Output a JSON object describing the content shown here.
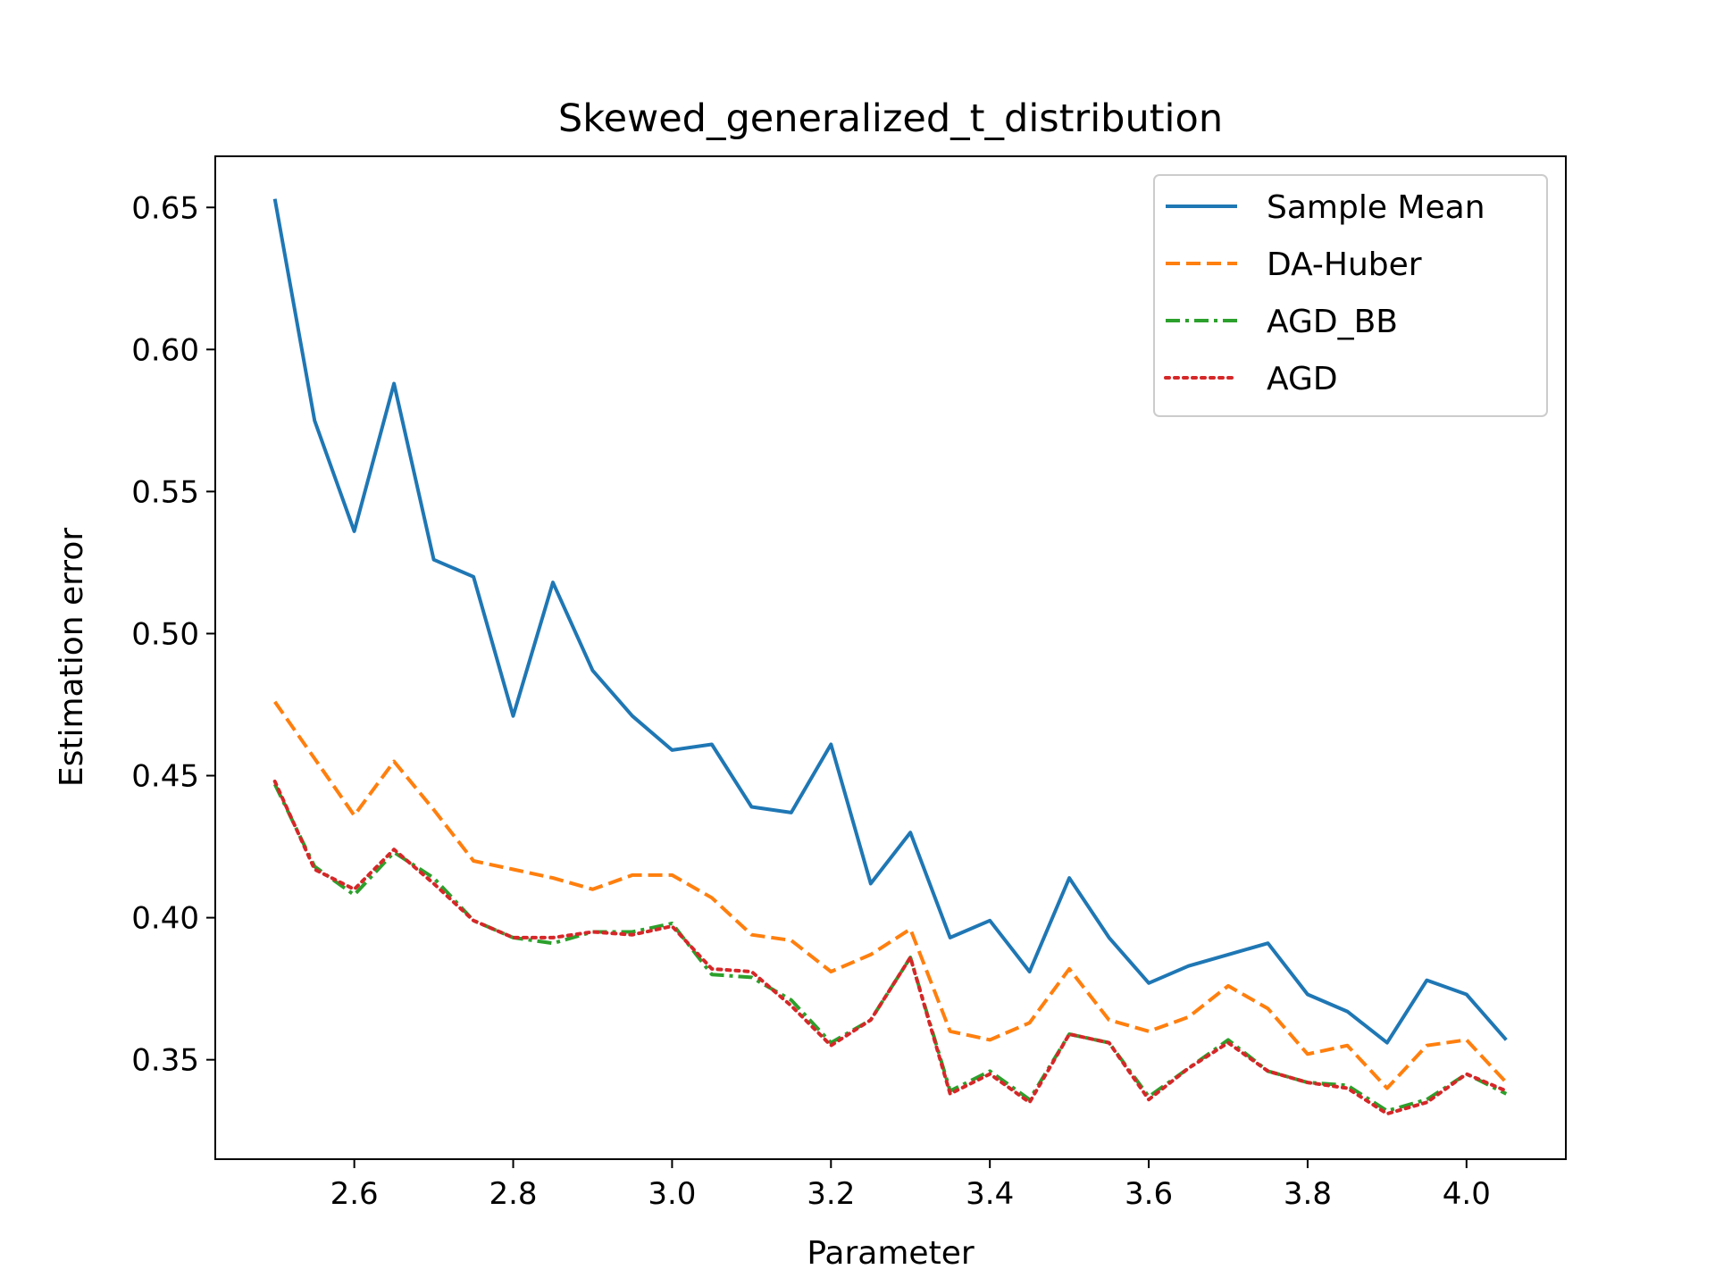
{
  "chart_data": {
    "type": "line",
    "title": "Skewed_generalized_t_distribution",
    "xlabel": "Parameter",
    "ylabel": "Estimation error",
    "xlim": [
      2.425,
      4.125
    ],
    "ylim": [
      0.315,
      0.668
    ],
    "xticks": [
      2.6,
      2.8,
      3.0,
      3.2,
      3.4,
      3.6,
      3.8,
      4.0
    ],
    "xtick_labels": [
      "2.6",
      "2.8",
      "3.0",
      "3.2",
      "3.4",
      "3.6",
      "3.8",
      "4.0"
    ],
    "yticks": [
      0.35,
      0.4,
      0.45,
      0.5,
      0.55,
      0.6,
      0.65
    ],
    "ytick_labels": [
      "0.35",
      "0.40",
      "0.45",
      "0.50",
      "0.55",
      "0.60",
      "0.65"
    ],
    "grid": false,
    "legend_position": "top-right",
    "x": [
      2.5,
      2.55,
      2.6,
      2.65,
      2.7,
      2.75,
      2.8,
      2.85,
      2.9,
      2.95,
      3.0,
      3.05,
      3.1,
      3.15,
      3.2,
      3.25,
      3.3,
      3.35,
      3.4,
      3.45,
      3.5,
      3.55,
      3.6,
      3.65,
      3.7,
      3.75,
      3.8,
      3.85,
      3.9,
      3.95,
      4.0,
      4.05
    ],
    "series": [
      {
        "name": "Sample Mean",
        "color": "#1f77b4",
        "style": "solid",
        "values": [
          0.653,
          0.575,
          0.536,
          0.588,
          0.526,
          0.52,
          0.471,
          0.518,
          0.487,
          0.471,
          0.459,
          0.461,
          0.439,
          0.437,
          0.461,
          0.412,
          0.43,
          0.393,
          0.399,
          0.381,
          0.414,
          0.393,
          0.377,
          0.383,
          0.387,
          0.391,
          0.373,
          0.367,
          0.356,
          0.378,
          0.373,
          0.357
        ]
      },
      {
        "name": "DA-Huber",
        "color": "#ff7f0e",
        "style": "dashed",
        "values": [
          0.476,
          0.456,
          0.436,
          0.455,
          0.438,
          0.42,
          0.417,
          0.414,
          0.41,
          0.415,
          0.415,
          0.407,
          0.394,
          0.392,
          0.381,
          0.387,
          0.396,
          0.36,
          0.357,
          0.363,
          0.382,
          0.364,
          0.36,
          0.365,
          0.376,
          0.368,
          0.352,
          0.355,
          0.34,
          0.355,
          0.357,
          0.342
        ]
      },
      {
        "name": "AGD_BB",
        "color": "#2ca02c",
        "style": "dashdot",
        "values": [
          0.447,
          0.418,
          0.408,
          0.423,
          0.414,
          0.399,
          0.393,
          0.391,
          0.395,
          0.395,
          0.398,
          0.38,
          0.379,
          0.371,
          0.356,
          0.364,
          0.386,
          0.339,
          0.346,
          0.336,
          0.359,
          0.356,
          0.337,
          0.347,
          0.357,
          0.346,
          0.342,
          0.341,
          0.332,
          0.336,
          0.345,
          0.338
        ]
      },
      {
        "name": "AGD",
        "color": "#d62728",
        "style": "dotted",
        "values": [
          0.448,
          0.417,
          0.41,
          0.424,
          0.412,
          0.399,
          0.393,
          0.393,
          0.395,
          0.394,
          0.397,
          0.382,
          0.381,
          0.369,
          0.355,
          0.364,
          0.386,
          0.338,
          0.345,
          0.335,
          0.359,
          0.356,
          0.336,
          0.347,
          0.356,
          0.346,
          0.342,
          0.34,
          0.331,
          0.335,
          0.345,
          0.339
        ]
      }
    ]
  }
}
